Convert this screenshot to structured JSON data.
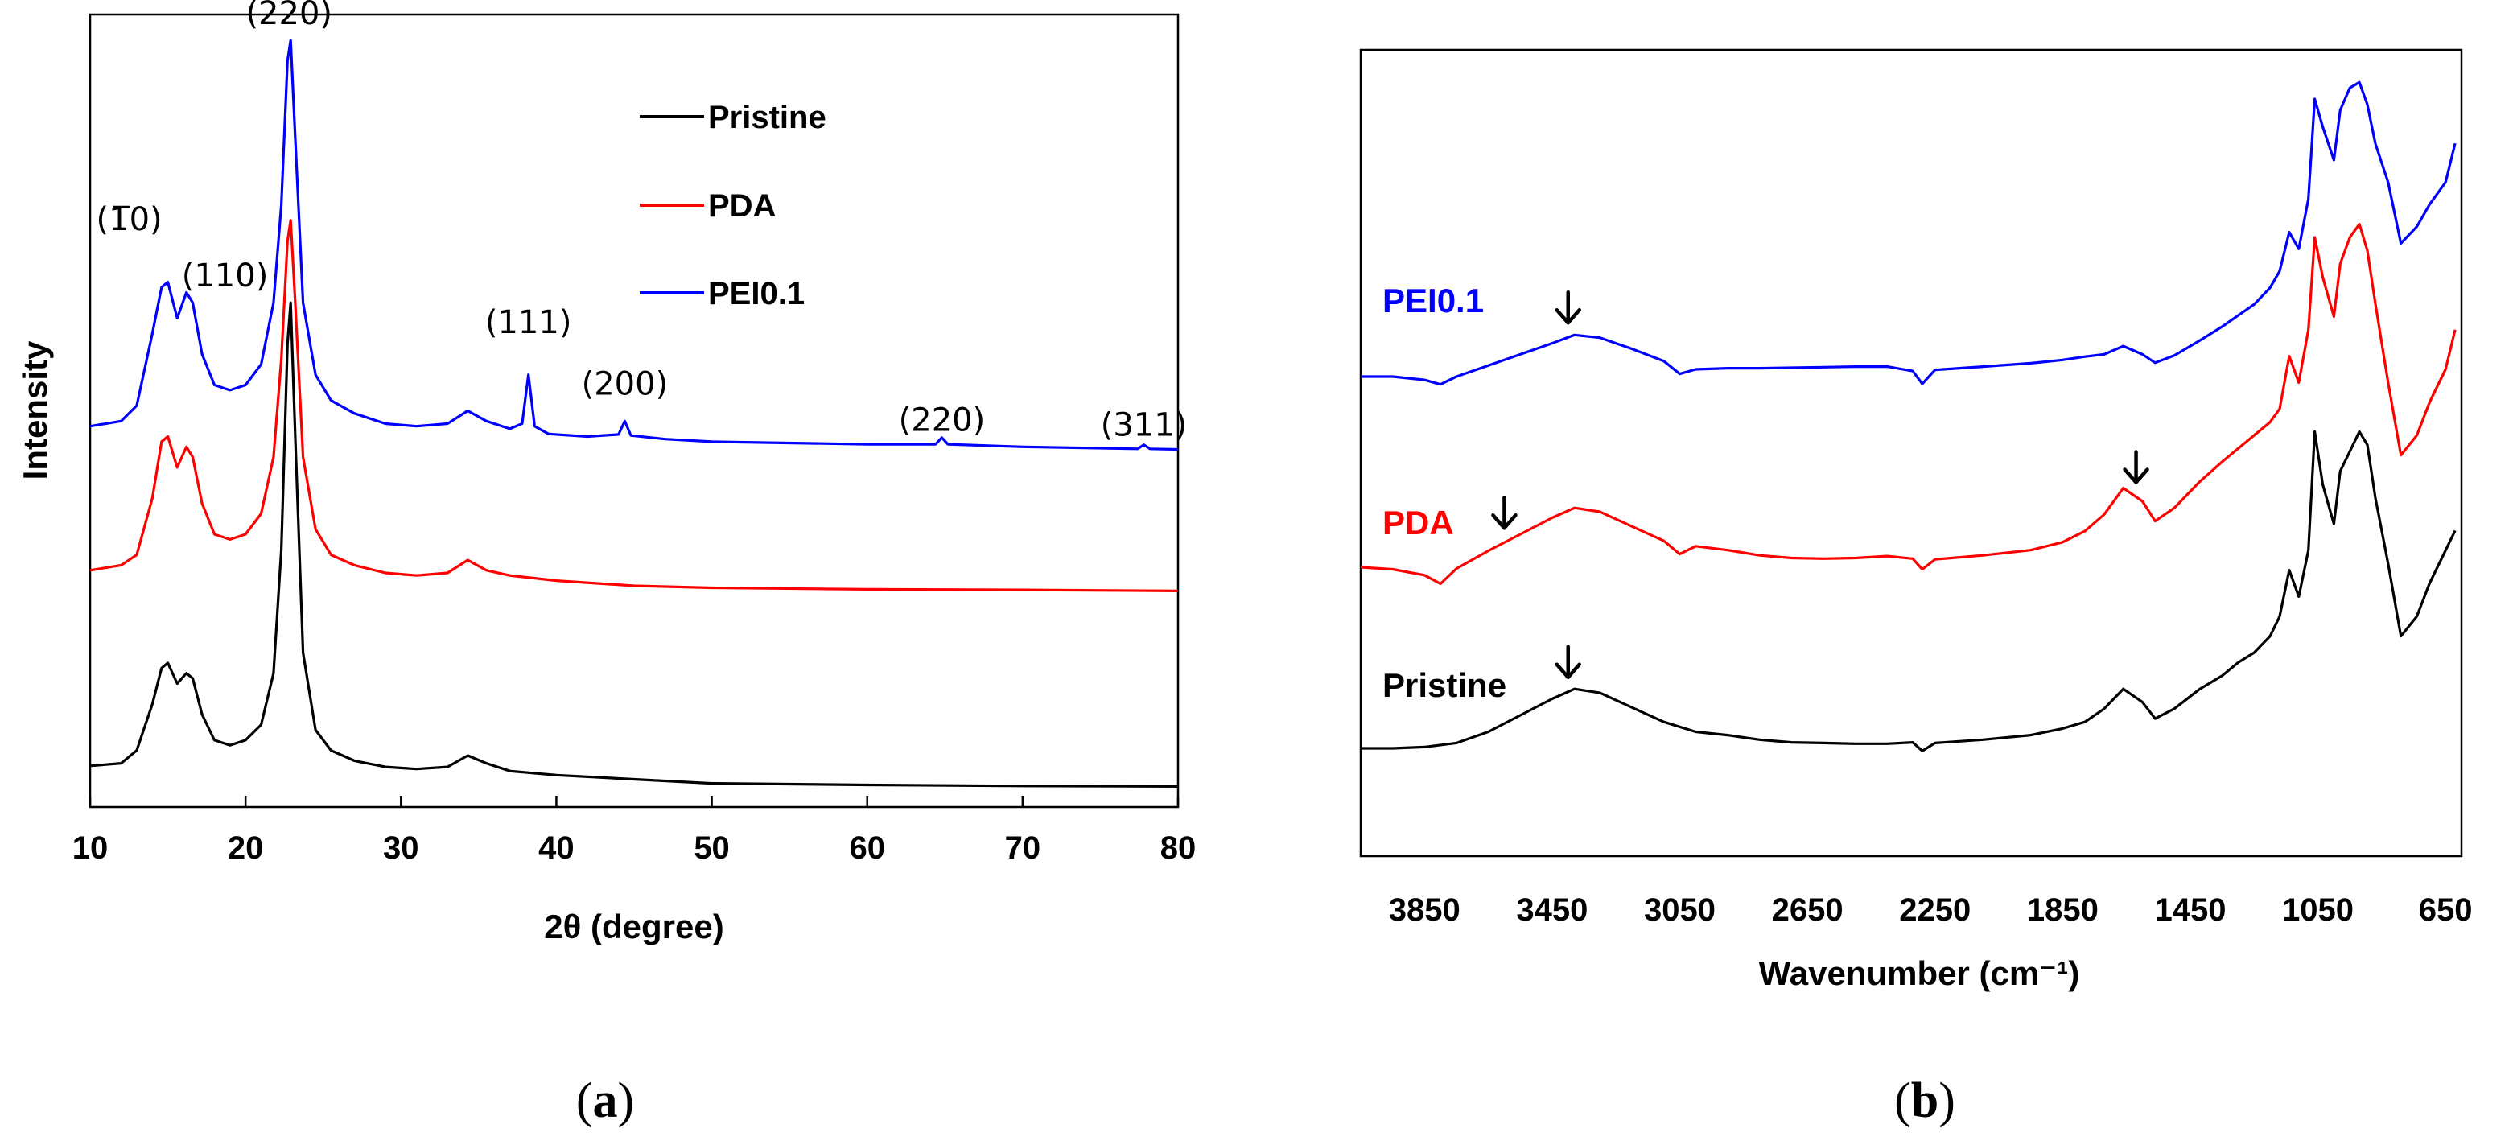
{
  "chart_data": [
    {
      "panel": "(a)",
      "panel_letter": "a",
      "type": "line",
      "title": "",
      "xlabel": "2θ (degree)",
      "ylabel": "Intensity",
      "xlim": [
        10,
        80
      ],
      "x_ticks": [
        "10",
        "20",
        "30",
        "40",
        "50",
        "60",
        "70",
        "80"
      ],
      "y_ticks": [],
      "grid": false,
      "legend": {
        "placement": "top-center",
        "entries": [
          {
            "name": "Pristine",
            "color": "#000000"
          },
          {
            "name": "PDA",
            "color": "#ff0000"
          },
          {
            "name": "PEI0.1",
            "color": "#0000ff"
          }
        ]
      },
      "annotations": [
        {
          "text": "(220)",
          "x": 22.8
        },
        {
          "text": "(1̅0)",
          "x": 15.0
        },
        {
          "text": "(110)",
          "x": 16.5
        },
        {
          "text": "(111)",
          "x": 38.2
        },
        {
          "text": "(200)",
          "x": 44.4
        },
        {
          "text": "(220)",
          "x": 64.8
        },
        {
          "text": "(311)",
          "x": 77.8
        }
      ],
      "series": [
        {
          "name": "Pristine",
          "color": "#000000",
          "x": [
            10,
            12,
            13,
            14,
            14.6,
            15.0,
            15.6,
            16.2,
            16.6,
            17.2,
            18,
            19,
            20,
            21,
            21.8,
            22.3,
            22.7,
            22.9,
            23.2,
            23.7,
            24.5,
            25.5,
            27,
            29,
            31,
            33,
            34.3,
            35.5,
            37,
            40,
            45,
            50,
            60,
            70,
            80
          ],
          "y": [
            6,
            6.5,
            9,
            18,
            25,
            26,
            22,
            24,
            23,
            16,
            11,
            10,
            11,
            14,
            24,
            48,
            88,
            96,
            70,
            28,
            13,
            9,
            7,
            5.8,
            5.4,
            5.8,
            8,
            6.5,
            5,
            4.2,
            3.4,
            2.6,
            2.3,
            2.1,
            2.0
          ]
        },
        {
          "name": "PDA",
          "color": "#ff0000",
          "x": [
            10,
            12,
            13,
            14,
            14.6,
            15.0,
            15.6,
            16.2,
            16.6,
            17.2,
            18,
            19,
            20,
            21,
            21.8,
            22.3,
            22.7,
            22.9,
            23.2,
            23.7,
            24.5,
            25.5,
            27,
            29,
            31,
            33,
            34.3,
            35.5,
            37,
            38.5,
            40,
            45,
            50,
            60,
            70,
            80
          ],
          "y": [
            44,
            45,
            47,
            58,
            69,
            70,
            64,
            68,
            66,
            57,
            51,
            50,
            51,
            55,
            66,
            85,
            108,
            112,
            96,
            66,
            52,
            47,
            45,
            43.5,
            43,
            43.5,
            46,
            44,
            43,
            42.5,
            42,
            41,
            40.6,
            40.3,
            40.2,
            40
          ]
        },
        {
          "name": "PEI0.1",
          "color": "#0000ff",
          "x": [
            10,
            12,
            13,
            14,
            14.6,
            15.0,
            15.6,
            16.2,
            16.6,
            17.2,
            18,
            19,
            20,
            21,
            21.8,
            22.3,
            22.7,
            22.9,
            23.2,
            23.7,
            24.5,
            25.5,
            27,
            29,
            31,
            33,
            34.3,
            35.5,
            37,
            37.8,
            38.2,
            38.6,
            39.5,
            42,
            44,
            44.4,
            44.8,
            47,
            50,
            60,
            64.4,
            64.8,
            65.2,
            70,
            77.4,
            77.8,
            78.2,
            80
          ],
          "y": [
            72,
            73,
            76,
            90,
            99,
            100,
            93,
            98,
            96,
            86,
            80,
            79,
            80,
            84,
            96,
            115,
            143,
            147,
            128,
            96,
            82,
            77,
            74.5,
            72.5,
            72,
            72.5,
            75,
            73,
            71.5,
            72.5,
            82,
            72,
            70.5,
            70,
            70.4,
            73,
            70.2,
            69.5,
            69,
            68.5,
            68.5,
            69.8,
            68.5,
            68,
            67.6,
            68.4,
            67.6,
            67.5
          ]
        }
      ]
    },
    {
      "panel": "(b)",
      "panel_letter": "b",
      "type": "line",
      "title": "",
      "xlabel": "Wavenumber (cm⁻¹)",
      "ylabel": "",
      "xlim": [
        4050,
        600
      ],
      "x_ticks": [
        "3850",
        "3450",
        "3050",
        "2650",
        "2250",
        "1850",
        "1450",
        "1050",
        "650"
      ],
      "y_ticks": [],
      "grid": false,
      "series_labels": [
        {
          "name": "PEI0.1",
          "color": "#0000ff"
        },
        {
          "name": "PDA",
          "color": "#ff0000"
        },
        {
          "name": "Pristine",
          "color": "#000000"
        }
      ],
      "arrow_annotations": [
        {
          "series": "PEI0.1",
          "x": 3400
        },
        {
          "series": "PDA",
          "x": 3600
        },
        {
          "series": "PDA",
          "x": 1620
        },
        {
          "series": "Pristine",
          "x": 3400
        }
      ],
      "series": [
        {
          "name": "Pristine",
          "color": "#000000",
          "x": [
            4050,
            3950,
            3850,
            3750,
            3650,
            3550,
            3450,
            3380,
            3300,
            3200,
            3100,
            3000,
            2900,
            2800,
            2700,
            2600,
            2500,
            2400,
            2320,
            2290,
            2250,
            2100,
            1950,
            1850,
            1780,
            1720,
            1660,
            1600,
            1560,
            1500,
            1420,
            1350,
            1300,
            1250,
            1200,
            1170,
            1140,
            1110,
            1080,
            1060,
            1035,
            1000,
            980,
            950,
            920,
            895,
            870,
            830,
            790,
            740,
            700,
            650,
            620
          ],
          "y": [
            0,
            0,
            0.2,
            0.8,
            2.5,
            5,
            7.5,
            9,
            8.4,
            6.2,
            4,
            2.5,
            2,
            1.3,
            0.9,
            0.8,
            0.7,
            0.7,
            0.9,
            -0.4,
            0.8,
            1.3,
            2,
            3,
            4,
            6,
            9,
            7,
            4.5,
            6,
            9,
            11,
            13,
            14.5,
            17,
            20,
            27,
            23,
            30,
            48,
            40,
            34,
            42,
            45,
            48,
            46,
            38,
            28,
            17,
            20,
            25,
            30,
            33
          ]
        },
        {
          "name": "PDA",
          "color": "#ff0000",
          "x": [
            4050,
            3950,
            3850,
            3800,
            3750,
            3650,
            3550,
            3450,
            3380,
            3300,
            3200,
            3100,
            3050,
            3000,
            2900,
            2800,
            2700,
            2600,
            2500,
            2400,
            2320,
            2290,
            2250,
            2100,
            1950,
            1850,
            1780,
            1720,
            1660,
            1600,
            1560,
            1500,
            1420,
            1350,
            1300,
            1250,
            1200,
            1170,
            1140,
            1110,
            1080,
            1060,
            1035,
            1000,
            980,
            950,
            920,
            895,
            870,
            830,
            790,
            740,
            700,
            650,
            620
          ],
          "y": [
            0,
            -0.3,
            -1.2,
            -2.5,
            -0.2,
            2.5,
            5,
            7.5,
            9,
            8.4,
            6.2,
            4,
            2,
            3.2,
            2.6,
            1.8,
            1.4,
            1.3,
            1.4,
            1.7,
            1.3,
            -0.3,
            1.2,
            1.8,
            2.6,
            3.8,
            5.5,
            8,
            12,
            10,
            7,
            9,
            13,
            16,
            18,
            20,
            22,
            24,
            32,
            28,
            36,
            50,
            44,
            38,
            46,
            50,
            52,
            48,
            40,
            28,
            17,
            20,
            25,
            30,
            36
          ]
        },
        {
          "name": "PEI0.1",
          "color": "#0000ff",
          "x": [
            4050,
            3950,
            3850,
            3800,
            3750,
            3650,
            3550,
            3450,
            3380,
            3300,
            3200,
            3100,
            3050,
            3000,
            2900,
            2800,
            2700,
            2600,
            2500,
            2400,
            2320,
            2290,
            2250,
            2100,
            1950,
            1850,
            1780,
            1720,
            1660,
            1600,
            1560,
            1500,
            1420,
            1350,
            1300,
            1250,
            1200,
            1170,
            1140,
            1110,
            1080,
            1060,
            1035,
            1000,
            980,
            950,
            920,
            895,
            870,
            830,
            790,
            740,
            700,
            650,
            620
          ],
          "y": [
            0,
            0,
            -0.6,
            -1.4,
            0,
            2,
            4,
            6,
            7.5,
            7,
            5,
            2.8,
            0.5,
            1.3,
            1.5,
            1.5,
            1.6,
            1.7,
            1.8,
            1.8,
            1,
            -1.3,
            1.2,
            1.8,
            2.4,
            3,
            3.6,
            4,
            5.5,
            4,
            2.5,
            3.8,
            6.5,
            9,
            11,
            13,
            16,
            19,
            26,
            23,
            32,
            50,
            45,
            39,
            48,
            52,
            53,
            49,
            42,
            35,
            24,
            27,
            31,
            35,
            42
          ]
        }
      ]
    }
  ]
}
